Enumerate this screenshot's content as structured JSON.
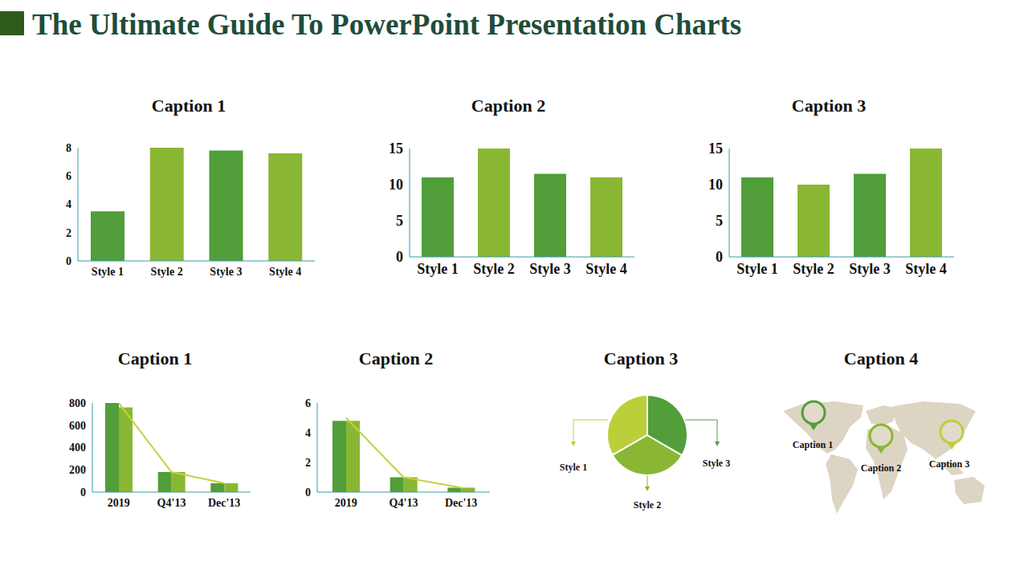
{
  "title": "The Ultimate Guide To PowerPoint Presentation Charts",
  "chart_data": [
    {
      "type": "bar",
      "title": "Caption 1",
      "categories": [
        "Style 1",
        "Style 2",
        "Style 3",
        "Style 4"
      ],
      "values": [
        3.5,
        8,
        7.8,
        7.6
      ],
      "colors": [
        "#519e3a",
        "#8ab733",
        "#519e3a",
        "#8ab733"
      ],
      "ylim": [
        0,
        8
      ],
      "yticks": [
        0,
        2,
        4,
        6,
        8
      ]
    },
    {
      "type": "bar",
      "title": "Caption 2",
      "categories": [
        "Style 1",
        "Style 2",
        "Style 3",
        "Style 4"
      ],
      "values": [
        11,
        15,
        11.5,
        11
      ],
      "colors": [
        "#519e3a",
        "#8ab733",
        "#519e3a",
        "#8ab733"
      ],
      "ylim": [
        0,
        15
      ],
      "yticks": [
        0,
        5,
        10,
        15
      ]
    },
    {
      "type": "bar",
      "title": "Caption 3",
      "categories": [
        "Style 1",
        "Style 2",
        "Style 3",
        "Style 4"
      ],
      "values": [
        11,
        10,
        11.5,
        15
      ],
      "colors": [
        "#519e3a",
        "#8ab733",
        "#519e3a",
        "#8ab733"
      ],
      "ylim": [
        0,
        15
      ],
      "yticks": [
        0,
        5,
        10,
        15
      ]
    },
    {
      "type": "bar",
      "title": "Caption 1",
      "categories": [
        "2019",
        "Q4'13",
        "Dec'13"
      ],
      "series": [
        {
          "color": "#519e3a",
          "values": [
            800,
            180,
            80
          ]
        },
        {
          "color": "#8ab733",
          "values": [
            760,
            180,
            80
          ]
        },
        {
          "type": "line",
          "color": "#c2d23e",
          "values": [
            800,
            180,
            80
          ]
        }
      ],
      "ylim": [
        0,
        800
      ],
      "yticks": [
        0,
        200,
        400,
        600,
        800
      ]
    },
    {
      "type": "bar",
      "title": "Caption 2",
      "categories": [
        "2019",
        "Q4'13",
        "Dec'13"
      ],
      "series": [
        {
          "color": "#519e3a",
          "values": [
            4.8,
            1.0,
            0.3
          ]
        },
        {
          "color": "#8ab733",
          "values": [
            4.8,
            1.0,
            0.3
          ]
        },
        {
          "type": "line",
          "color": "#c2d23e",
          "values": [
            5,
            1,
            0.3
          ]
        }
      ],
      "ylim": [
        0,
        6
      ],
      "yticks": [
        0,
        2,
        4,
        6
      ]
    },
    {
      "type": "pie",
      "title": "Caption 3",
      "categories": [
        "Style 1",
        "Style 2",
        "Style 3"
      ],
      "values": [
        33.3,
        33.3,
        33.4
      ],
      "colors": [
        "#bccf3a",
        "#8ab733",
        "#519e3a"
      ]
    },
    {
      "type": "map",
      "title": "Caption 4",
      "categories": [
        "Caption 1",
        "Caption 2",
        "Caption 3"
      ],
      "colors": [
        "#519e3a",
        "#8ab733",
        "#bccf3a"
      ]
    }
  ]
}
